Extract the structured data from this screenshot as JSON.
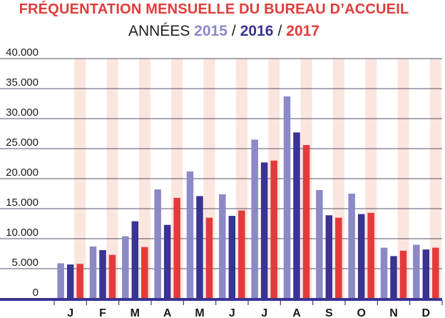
{
  "title": "FRÉQUENTATION MENSUELLE DU BUREAU D’ACCUEIL",
  "subtitle": {
    "prefix": "ANNÉES",
    "sep1": "/",
    "sep2": "/"
  },
  "colors": {
    "title": "#e13b3b",
    "s2015": "#8c89c6",
    "s2016": "#3a3392",
    "s2017": "#e33b3b",
    "band": "#fbe5df",
    "grid": "#1e1e3c",
    "axis": "#3a3392"
  },
  "chart_data": {
    "type": "bar",
    "categories": [
      "J",
      "F",
      "M",
      "A",
      "M",
      "J",
      "J",
      "A",
      "S",
      "O",
      "N",
      "D"
    ],
    "series": [
      {
        "name": "2015",
        "values": [
          5900,
          8700,
          10400,
          18200,
          21200,
          17400,
          26500,
          33700,
          18100,
          17500,
          8500,
          9000
        ]
      },
      {
        "name": "2016",
        "values": [
          5700,
          8100,
          12900,
          12300,
          17100,
          13800,
          22700,
          27700,
          13900,
          14100,
          7100,
          8200
        ]
      },
      {
        "name": "2017",
        "values": [
          5800,
          7300,
          8600,
          16800,
          13500,
          14700,
          23000,
          25600,
          13500,
          14300,
          8000,
          8500
        ]
      }
    ],
    "ylim": [
      0,
      40000
    ],
    "yticks": [
      0,
      5000,
      10000,
      15000,
      20000,
      25000,
      30000,
      35000,
      40000
    ],
    "ytick_labels": [
      "0",
      "5.000",
      "10.000",
      "15.000",
      "20.000",
      "25.000",
      "30.000",
      "35.000",
      "40.000"
    ],
    "grid": true
  }
}
